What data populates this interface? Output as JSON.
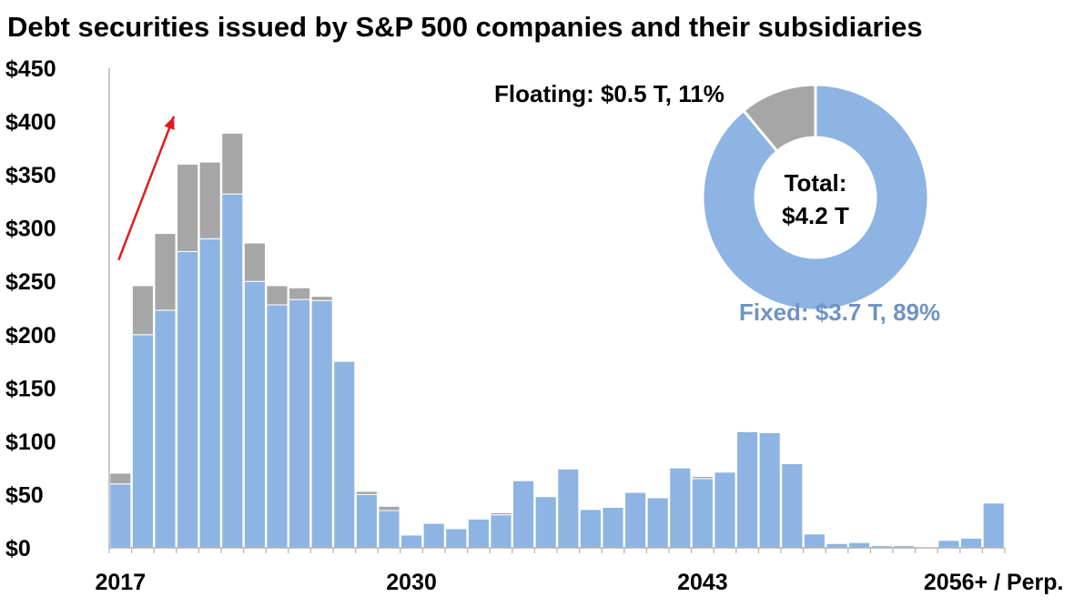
{
  "chart_data": [
    {
      "type": "bar",
      "subtype": "stacked",
      "title": "Debt securities issued by S&P 500 companies and their subsidiaries",
      "xlabel": "",
      "ylabel": "",
      "ylim": [
        0,
        450
      ],
      "yticks": [
        0,
        50,
        100,
        150,
        200,
        250,
        300,
        350,
        400,
        450
      ],
      "ytick_labels": [
        "$0",
        "$50",
        "$100",
        "$150",
        "$200",
        "$250",
        "$300",
        "$350",
        "$400",
        "$450"
      ],
      "xtick_labels": [
        {
          "category": "2017",
          "label": "2017"
        },
        {
          "category": "2030",
          "label": "2030"
        },
        {
          "category": "2043",
          "label": "2043"
        },
        {
          "category": "2056+ / Perp.",
          "label": "2056+ / Perp."
        }
      ],
      "categories": [
        "2017",
        "2018",
        "2019",
        "2020",
        "2021",
        "2022",
        "2023",
        "2024",
        "2025",
        "2026",
        "2027",
        "2028",
        "2029",
        "2030",
        "2031",
        "2032",
        "2033",
        "2034",
        "2035",
        "2036",
        "2037",
        "2038",
        "2039",
        "2040",
        "2041",
        "2042",
        "2043",
        "2044",
        "2045",
        "2046",
        "2047",
        "2048",
        "2049",
        "2050",
        "2051",
        "2052",
        "2053",
        "2054",
        "2055",
        "2056+ / Perp."
      ],
      "series": [
        {
          "name": "Fixed",
          "color": "#8DB4E2",
          "values": [
            60,
            200,
            223,
            278,
            290,
            332,
            250,
            228,
            233,
            232,
            175,
            50,
            35,
            12,
            23,
            18,
            27,
            31,
            63,
            48,
            74,
            36,
            38,
            52,
            47,
            75,
            65,
            71,
            109,
            108,
            79,
            13,
            4,
            5,
            2,
            2,
            0,
            7,
            9,
            42
          ]
        },
        {
          "name": "Floating",
          "color": "#A6A6A6",
          "values": [
            10,
            46,
            72,
            82,
            72,
            57,
            36,
            18,
            11,
            4,
            0,
            3,
            4,
            0,
            0,
            0,
            0,
            2,
            0,
            0,
            0,
            0,
            0,
            0,
            0,
            0,
            2,
            0,
            0,
            0,
            0,
            0,
            0,
            0,
            0,
            0,
            0,
            0,
            0,
            0
          ]
        }
      ],
      "annotations": [
        {
          "type": "arrow",
          "color": "#E31A1C",
          "from_category": "2017",
          "to_category": "2020",
          "from_value": 270,
          "to_value": 405
        }
      ]
    },
    {
      "type": "pie",
      "subtype": "donut",
      "center_text": [
        "Total:",
        "$4.2 T"
      ],
      "slices": [
        {
          "name": "Fixed",
          "value": 89,
          "amount": 3.7,
          "color": "#8DB4E2",
          "label": "Fixed: $3.7 T, 89%",
          "label_color": "#6F93C3"
        },
        {
          "name": "Floating",
          "value": 11,
          "amount": 0.5,
          "color": "#A6A6A6",
          "label": "Floating: $0.5 T, 11%",
          "label_color": "#000000"
        }
      ]
    }
  ]
}
